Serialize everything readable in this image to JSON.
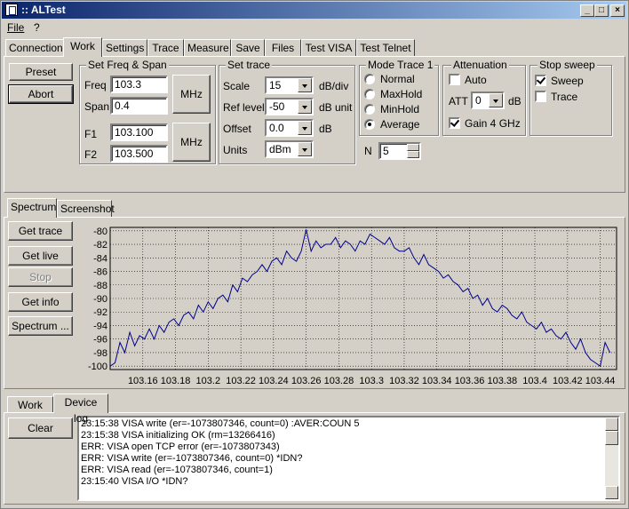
{
  "window": {
    "title": ":: ALTest",
    "min": "_",
    "max": "□",
    "close": "×"
  },
  "menu": [
    "File",
    "?"
  ],
  "top_tabs": [
    "Connection",
    "Work",
    "Settings",
    "Trace",
    "Measure",
    "Save",
    "Files",
    "Test VISA",
    "Test Telnet"
  ],
  "left_buttons": {
    "preset": "Preset",
    "abort": "Abort"
  },
  "freq": {
    "title": "Set Freq & Span",
    "freq_label": "Freq",
    "freq_value": "103.3",
    "span_label": "Span",
    "span_value": "0.4",
    "mhz1": "MHz",
    "f1_label": "F1",
    "f1_value": "103.100",
    "f2_label": "F2",
    "f2_value": "103.500",
    "mhz2": "MHz"
  },
  "trace": {
    "title": "Set trace",
    "scale_label": "Scale",
    "scale_value": "15",
    "scale_unit": "dB/div",
    "ref_label": "Ref level",
    "ref_value": "-50",
    "ref_unit": "dB unit",
    "offset_label": "Offset",
    "offset_value": "0.0",
    "offset_unit": "dB",
    "units_label": "Units",
    "units_value": "dBm"
  },
  "mode": {
    "title": "Mode Trace 1",
    "options": [
      "Normal",
      "MaxHold",
      "MinHold",
      "Average"
    ],
    "selected": "Average",
    "n_label": "N",
    "n_value": "5"
  },
  "atten": {
    "title": "Attenuation",
    "auto_label": "Auto",
    "auto_checked": false,
    "att_label": "ATT",
    "att_value": "0",
    "att_unit": "dB",
    "gain_label": "Gain 4 GHz",
    "gain_checked": true
  },
  "stop": {
    "title": "Stop sweep",
    "sweep_label": "Sweep",
    "sweep_checked": true,
    "trace_label": "Trace",
    "trace_checked": false
  },
  "mid_tabs": [
    "Spectrum",
    "Screenshot"
  ],
  "spectrum_buttons": [
    "Get trace",
    "Get live",
    "Stop",
    "Get info",
    "Spectrum ..."
  ],
  "chart_data": {
    "type": "line",
    "title": "",
    "xlabel": "",
    "ylabel": "",
    "xlim": [
      103.14,
      103.45
    ],
    "ylim": [
      -100.5,
      -79.5
    ],
    "xticks": [
      "103.16",
      "103.18",
      "103.2",
      "103.22",
      "103.24",
      "103.26",
      "103.28",
      "103.3",
      "103.32",
      "103.34",
      "103.36",
      "103.38",
      "103.4",
      "103.42",
      "103.44"
    ],
    "yticks": [
      "-80",
      "-82",
      "-84",
      "-86",
      "-88",
      "-90",
      "-92",
      "-94",
      "-96",
      "-98",
      "-100"
    ],
    "grid": true,
    "line_color": "#00008b",
    "x": [
      103.14,
      103.143,
      103.146,
      103.149,
      103.152,
      103.155,
      103.158,
      103.161,
      103.164,
      103.167,
      103.17,
      103.173,
      103.176,
      103.179,
      103.182,
      103.185,
      103.188,
      103.191,
      103.194,
      103.197,
      103.2,
      103.203,
      103.206,
      103.209,
      103.212,
      103.215,
      103.218,
      103.221,
      103.224,
      103.227,
      103.23,
      103.233,
      103.236,
      103.239,
      103.242,
      103.245,
      103.248,
      103.251,
      103.254,
      103.257,
      103.26,
      103.263,
      103.266,
      103.269,
      103.272,
      103.275,
      103.278,
      103.281,
      103.284,
      103.287,
      103.29,
      103.293,
      103.296,
      103.299,
      103.302,
      103.305,
      103.308,
      103.311,
      103.314,
      103.317,
      103.32,
      103.323,
      103.326,
      103.329,
      103.332,
      103.335,
      103.338,
      103.341,
      103.344,
      103.347,
      103.35,
      103.353,
      103.356,
      103.359,
      103.362,
      103.365,
      103.368,
      103.371,
      103.374,
      103.377,
      103.38,
      103.383,
      103.386,
      103.389,
      103.392,
      103.395,
      103.398,
      103.401,
      103.404,
      103.407,
      103.41,
      103.413,
      103.416,
      103.419,
      103.422,
      103.425,
      103.428,
      103.431,
      103.434,
      103.437,
      103.44,
      103.443,
      103.446
    ],
    "y": [
      -100,
      -99.5,
      -96.5,
      -98,
      -95,
      -97,
      -95.5,
      -96,
      -94.5,
      -96,
      -94,
      -95,
      -93.5,
      -93,
      -94,
      -92.5,
      -92,
      -93,
      -91,
      -92,
      -90.5,
      -91.5,
      -90,
      -89.5,
      -90.5,
      -88,
      -89,
      -87,
      -87.5,
      -86.5,
      -86,
      -85,
      -86,
      -84.5,
      -84,
      -85,
      -83,
      -84,
      -84.5,
      -83,
      -79.8,
      -83,
      -81.5,
      -82.5,
      -82,
      -82,
      -81,
      -82.5,
      -81.5,
      -82,
      -83,
      -81.5,
      -82,
      -80.5,
      -81,
      -81.5,
      -82,
      -81,
      -82.5,
      -83,
      -83,
      -82.5,
      -84,
      -85,
      -83.5,
      -85,
      -85.5,
      -86,
      -87,
      -86.5,
      -87.5,
      -88,
      -89,
      -88.5,
      -90,
      -89.5,
      -91,
      -90,
      -91.5,
      -92,
      -91,
      -91.5,
      -92.5,
      -93,
      -92,
      -93.5,
      -94,
      -94.5,
      -93.5,
      -95,
      -94.5,
      -95.5,
      -96,
      -95,
      -96.5,
      -97.5,
      -96,
      -98,
      -99,
      -99.5,
      -100,
      -96.5,
      -98
    ]
  },
  "bottom_tabs": [
    "Work log",
    "Device log"
  ],
  "clear_label": "Clear",
  "log": [
    "23:15:38 VISA write (er=-1073807346, count=0) :AVER:COUN 5",
    "23:15:38 VISA initializing OK (rm=13266416)",
    "ERR: VISA open TCP error (er=-1073807343)",
    "ERR: VISA write (er=-1073807346, count=0) *IDN?",
    "ERR: VISA read (er=-1073807346, count=1)",
    "23:15:40 VISA I/O *IDN?"
  ]
}
